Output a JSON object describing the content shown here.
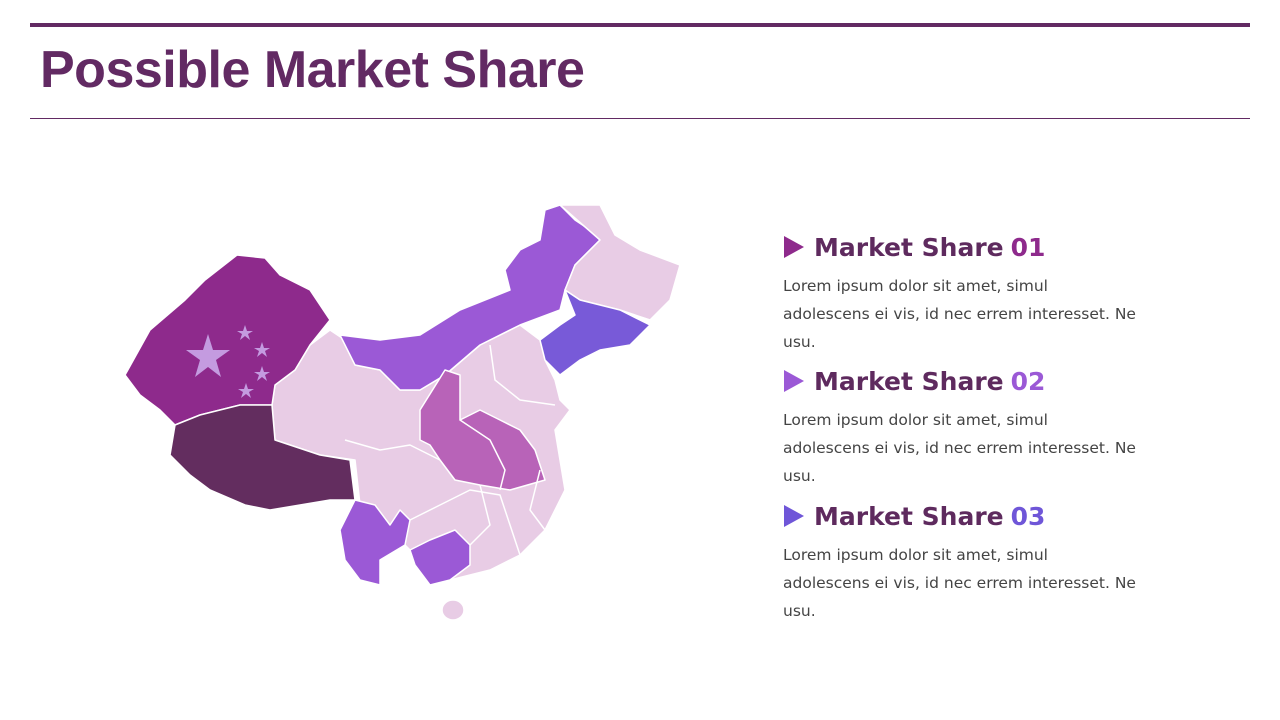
{
  "header": {
    "title": "Possible Market Share"
  },
  "items": [
    {
      "label": "Market Share",
      "number": "01",
      "text": "Lorem ipsum dolor sit amet, simul adolescens ei vis, id nec errem interesset. Ne usu."
    },
    {
      "label": "Market Share",
      "number": "02",
      "text": "Lorem ipsum dolor sit amet, simul adolescens ei vis, id nec errem interesset. Ne usu."
    },
    {
      "label": "Market Share",
      "number": "03",
      "text": "Lorem ipsum dolor sit amet, simul adolescens ei vis, id nec errem interesset. Ne usu."
    }
  ]
}
